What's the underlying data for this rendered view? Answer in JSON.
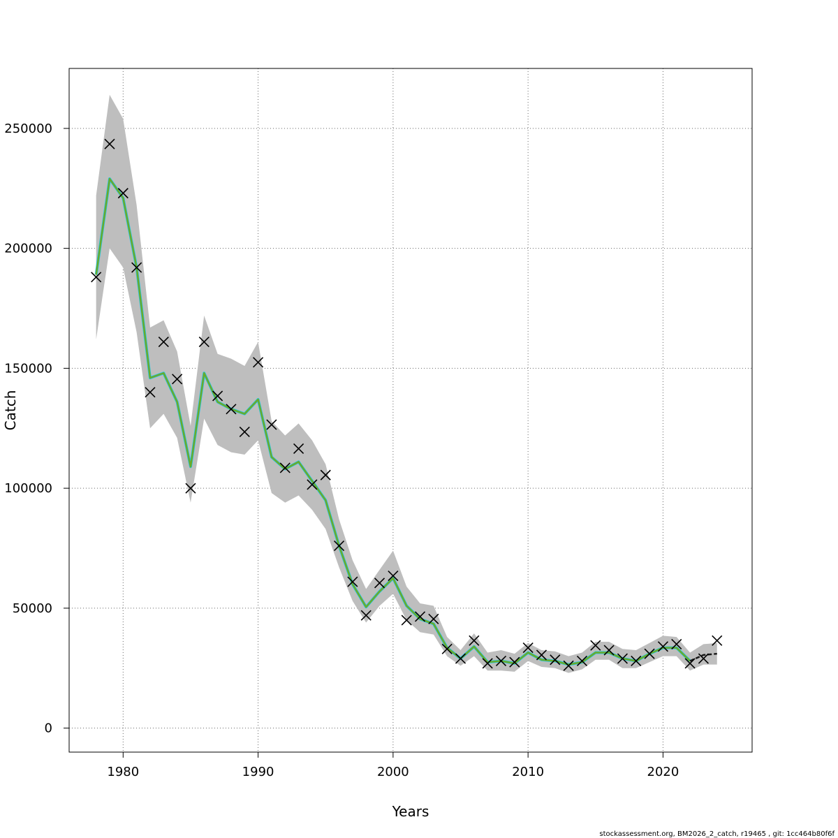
{
  "chart_data": {
    "type": "line",
    "title": "",
    "xlabel": "Years",
    "ylabel": "Catch",
    "xlim": [
      1976,
      2026.6
    ],
    "ylim": [
      -10000,
      275000
    ],
    "grid": true,
    "xticks": [
      1980,
      1990,
      2000,
      2010,
      2020
    ],
    "yticks": [
      0,
      50000,
      100000,
      150000,
      200000,
      250000
    ],
    "colors": {
      "band": "#bebebe",
      "observed_marker": "#000000",
      "fit_line": "#6aaa2a",
      "fit_line_alt": "#1ec8e6",
      "forecast_line": "#1a1a1a"
    },
    "confidence_band": {
      "x": [
        1978,
        1979,
        1980,
        1981,
        1982,
        1983,
        1984,
        1985,
        1986,
        1987,
        1988,
        1989,
        1990,
        1991,
        1992,
        1993,
        1994,
        1995,
        1996,
        1997,
        1998,
        1999,
        2000,
        2001,
        2002,
        2003,
        2004,
        2005,
        2006,
        2007,
        2008,
        2009,
        2010,
        2011,
        2012,
        2013,
        2014,
        2015,
        2016,
        2017,
        2018,
        2019,
        2020,
        2021,
        2022,
        2023,
        2024
      ],
      "lower": [
        162000,
        200000,
        192000,
        165000,
        125000,
        131000,
        121000,
        94000,
        129000,
        118000,
        115000,
        114000,
        120000,
        98000,
        94000,
        97000,
        91000,
        83000,
        67000,
        53000,
        44000,
        51000,
        56000,
        45000,
        40000,
        39000,
        30000,
        26000,
        30000,
        24000,
        24000,
        23500,
        28000,
        25500,
        25000,
        23000,
        24500,
        28500,
        28500,
        25000,
        25000,
        27500,
        30000,
        30000,
        24000,
        26500,
        26500
      ],
      "upper": [
        222000,
        264000,
        254000,
        218000,
        167000,
        170000,
        157000,
        126000,
        172000,
        156000,
        154000,
        151000,
        161000,
        128000,
        122000,
        127000,
        120000,
        110000,
        87000,
        70000,
        58000,
        66000,
        74000,
        59000,
        52000,
        51000,
        38000,
        32500,
        39500,
        31500,
        32500,
        31000,
        35500,
        32500,
        32000,
        30000,
        31500,
        36000,
        36000,
        33000,
        32500,
        35500,
        38500,
        38000,
        31500,
        35000,
        35500
      ]
    },
    "series": [
      {
        "values_x": [
          1978,
          1979,
          1980,
          1981,
          1982,
          1983,
          1984,
          1985,
          1986,
          1987,
          1988,
          1989,
          1990,
          1991,
          1992,
          1993,
          1994,
          1995,
          1996,
          1997,
          1998,
          1999,
          2000,
          2001,
          2002,
          2003,
          2004,
          2005,
          2006,
          2007,
          2008,
          2009,
          2010,
          2011,
          2012,
          2013,
          2014,
          2015,
          2016,
          2017,
          2018,
          2019,
          2020,
          2021,
          2022
        ],
        "values": [
          189000,
          229000,
          221000,
          192000,
          146000,
          148000,
          136000,
          109000,
          148000,
          136000,
          133000,
          131000,
          137000,
          113000,
          108000,
          111000,
          103000,
          95000,
          76000,
          60000,
          50500,
          57000,
          62500,
          51000,
          45500,
          43500,
          33500,
          29000,
          34000,
          27500,
          28000,
          27000,
          31500,
          28500,
          28000,
          26500,
          27500,
          31500,
          31500,
          29000,
          28000,
          31000,
          33500,
          33500,
          28000
        ]
      },
      {
        "values_x": [
          2022,
          2023,
          2024
        ],
        "values": [
          28000,
          30500,
          31000
        ]
      }
    ],
    "observed": {
      "x": [
        1978,
        1979,
        1980,
        1981,
        1982,
        1983,
        1984,
        1985,
        1986,
        1987,
        1988,
        1989,
        1990,
        1991,
        1992,
        1993,
        1994,
        1995,
        1996,
        1997,
        1998,
        1999,
        2000,
        2001,
        2002,
        2003,
        2004,
        2005,
        2006,
        2007,
        2008,
        2009,
        2010,
        2011,
        2012,
        2013,
        2014,
        2015,
        2016,
        2017,
        2018,
        2019,
        2020,
        2021,
        2022,
        2023,
        2024
      ],
      "y": [
        188000,
        243500,
        223000,
        192000,
        140000,
        161000,
        145500,
        100000,
        161000,
        138500,
        133000,
        123500,
        152500,
        126500,
        108500,
        116500,
        101500,
        105500,
        76000,
        61000,
        47000,
        60500,
        63500,
        45000,
        46500,
        45500,
        33000,
        29000,
        36500,
        27000,
        28000,
        27500,
        33500,
        30500,
        28500,
        26000,
        28000,
        34500,
        32500,
        29000,
        28000,
        31000,
        34000,
        35000,
        27000,
        29000,
        36500
      ]
    }
  },
  "footer": {
    "text": "stockassessment.org, BM2026_2_catch, r19465 , git: 1cc464b80f6f"
  }
}
